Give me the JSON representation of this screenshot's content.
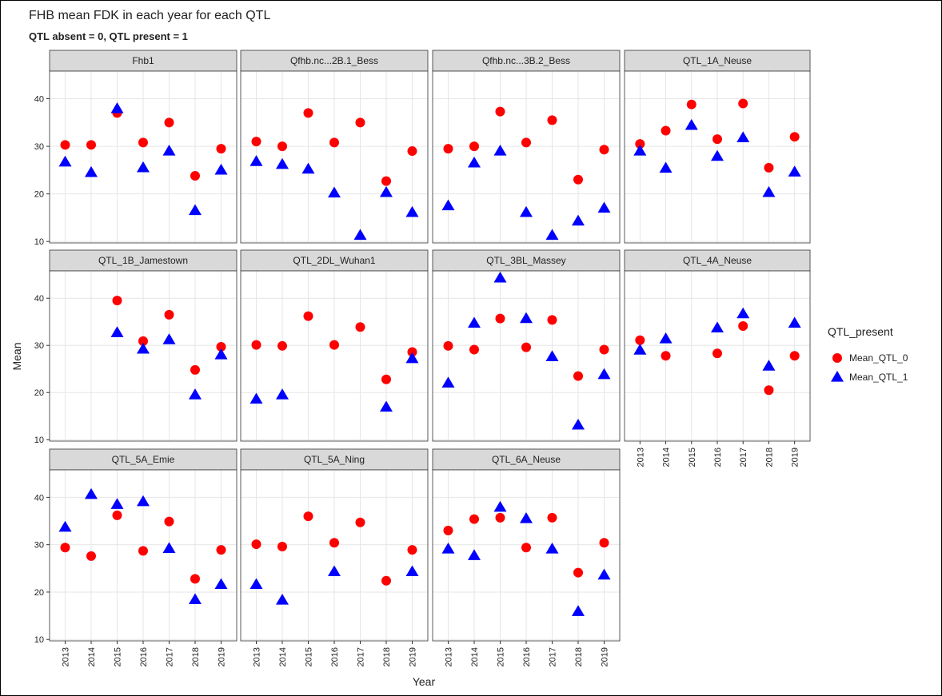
{
  "chart_data": {
    "type": "scatter",
    "title": "FHB mean FDK in each year for each QTL",
    "subtitle": "QTL absent = 0, QTL present = 1",
    "x_label": "Year",
    "y_label": "Mean",
    "legend_title": "QTL_present",
    "categories": [
      "2013",
      "2014",
      "2015",
      "2016",
      "2017",
      "2018",
      "2019"
    ],
    "ylim": [
      9.7,
      45.8
    ],
    "yticks": [
      10,
      20,
      30,
      40
    ],
    "grid": true,
    "series": [
      {
        "name": "Mean_QTL_0",
        "color": "#ff0000",
        "marker": "circle"
      },
      {
        "name": "Mean_QTL_1",
        "color": "#0000ff",
        "marker": "triangle"
      }
    ],
    "facets": [
      {
        "title": "Fhb1",
        "series": [
          {
            "values": [
              30.3,
              30.3,
              37,
              30.8,
              35,
              23.8,
              29.5
            ]
          },
          {
            "values": [
              26.7,
              24.5,
              37.9,
              25.5,
              29,
              16.5,
              25
            ]
          }
        ]
      },
      {
        "title": "Qfhb.nc...2B.1_Bess",
        "series": [
          {
            "values": [
              31,
              30,
              37,
              30.8,
              35,
              22.7,
              29
            ]
          },
          {
            "values": [
              26.8,
              26.2,
              25.2,
              20.2,
              11.3,
              20.3,
              16.1
            ]
          }
        ]
      },
      {
        "title": "Qfhb.nc...3B.2_Bess",
        "series": [
          {
            "values": [
              29.5,
              30,
              37.3,
              30.8,
              35.5,
              23,
              29.3
            ]
          },
          {
            "values": [
              17.5,
              26.5,
              29,
              16.1,
              11.3,
              14.3,
              17
            ]
          }
        ]
      },
      {
        "title": "QTL_1A_Neuse",
        "series": [
          {
            "values": [
              30.5,
              33.3,
              38.8,
              31.5,
              39,
              25.5,
              32
            ]
          },
          {
            "values": [
              29,
              25.4,
              34.4,
              27.9,
              31.8,
              20.3,
              24.6
            ]
          }
        ]
      },
      {
        "title": "QTL_1B_Jamestown",
        "series": [
          {
            "values": [
              null,
              null,
              39.5,
              30.9,
              36.5,
              24.8,
              29.7
            ]
          },
          {
            "values": [
              null,
              null,
              32.7,
              29.2,
              31.2,
              19.5,
              28
            ]
          }
        ]
      },
      {
        "title": "QTL_2DL_Wuhan1",
        "series": [
          {
            "values": [
              30.1,
              29.9,
              36.2,
              30.1,
              33.9,
              22.8,
              28.6
            ]
          },
          {
            "values": [
              18.6,
              19.5,
              null,
              null,
              null,
              16.9,
              27.2
            ]
          }
        ]
      },
      {
        "title": "QTL_3BL_Massey",
        "series": [
          {
            "values": [
              29.9,
              29.1,
              35.7,
              29.6,
              35.4,
              23.5,
              29.1
            ]
          },
          {
            "values": [
              22,
              34.7,
              44.3,
              35.7,
              27.6,
              13.1,
              23.8
            ]
          }
        ]
      },
      {
        "title": "QTL_4A_Neuse",
        "series": [
          {
            "values": [
              31.1,
              27.8,
              null,
              28.3,
              34.1,
              20.5,
              27.8
            ]
          },
          {
            "values": [
              29,
              31.4,
              null,
              33.7,
              36.7,
              25.6,
              34.7
            ]
          }
        ]
      },
      {
        "title": "QTL_5A_Emie",
        "series": [
          {
            "values": [
              29.4,
              27.6,
              36.2,
              28.7,
              34.9,
              22.8,
              28.9
            ]
          },
          {
            "values": [
              33.7,
              40.6,
              38.5,
              39.1,
              29.2,
              18.4,
              21.6
            ]
          }
        ]
      },
      {
        "title": "QTL_5A_Ning",
        "series": [
          {
            "values": [
              30.1,
              29.6,
              36,
              30.4,
              34.7,
              22.4,
              28.9
            ]
          },
          {
            "values": [
              21.6,
              18.3,
              null,
              24.3,
              null,
              null,
              24.3
            ]
          }
        ]
      },
      {
        "title": "QTL_6A_Neuse",
        "series": [
          {
            "values": [
              33,
              35.4,
              35.7,
              29.4,
              35.7,
              24.1,
              30.4
            ]
          },
          {
            "values": [
              29.1,
              27.7,
              37.9,
              35.5,
              29.1,
              15.9,
              23.6
            ]
          }
        ]
      }
    ]
  }
}
